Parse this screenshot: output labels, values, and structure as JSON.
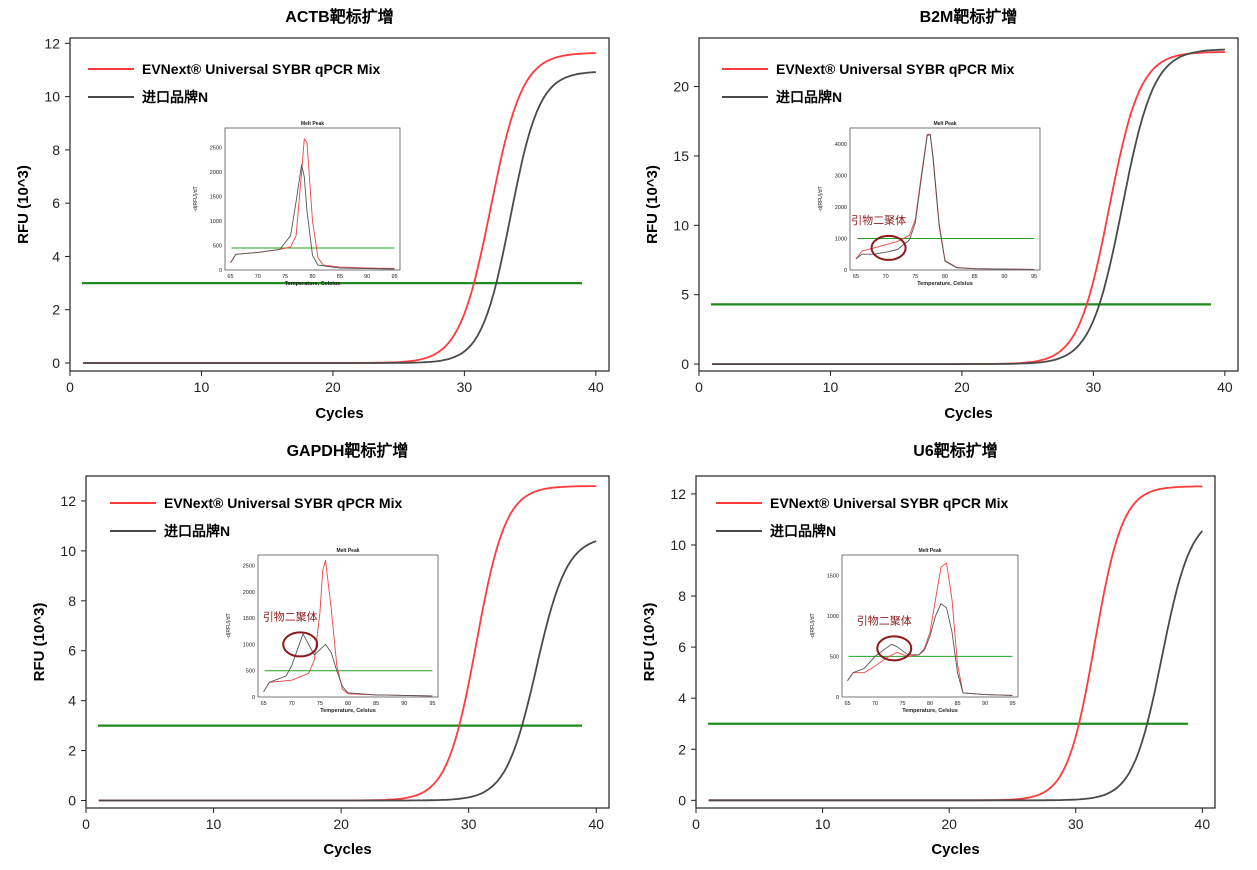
{
  "colors": {
    "evnext": "#ff3b3b",
    "import": "#4a4a4a",
    "threshold": "#1e8c1e",
    "ellipse": "#8b1a1a",
    "annot": "#8b1a1a"
  },
  "chart_data": [
    {
      "id": "actb",
      "type": "line",
      "title": "ACTB靶标扩增",
      "xlabel": "Cycles",
      "ylabel": "RFU (10^3)",
      "xlim": [
        0,
        41
      ],
      "ylim": [
        -0.3,
        12.2
      ],
      "xticks": [
        0,
        10,
        20,
        30,
        40
      ],
      "yticks": [
        0,
        2,
        4,
        6,
        8,
        10,
        12
      ],
      "threshold": 3.0,
      "legend": [
        "EVNext® Universal SYBR qPCR Mix",
        "进口品牌N"
      ],
      "series": [
        {
          "name": "EVNext® Universal SYBR qPCR Mix",
          "logistic": {
            "top": 11.65,
            "mid": 32.0,
            "slope": 1.2
          }
        },
        {
          "name": "进口品牌N",
          "logistic": {
            "top": 10.95,
            "mid": 33.5,
            "slope": 1.1
          }
        }
      ],
      "inset": {
        "title": "Melt Peak",
        "xlabel": "Temperature, Celsius",
        "ylabel": "-d(RFU)/dT",
        "xlim": [
          64,
          96
        ],
        "ylim": [
          0,
          2900
        ],
        "xticks": [
          65,
          70,
          75,
          80,
          85,
          90,
          95
        ],
        "yticks": [
          0,
          500,
          1000,
          1500,
          2000,
          2500
        ],
        "threshold": 450,
        "annotation": "",
        "series": [
          {
            "name": "EVNext",
            "x": [
              65,
              66,
              70,
              74,
              76,
              77,
              78,
              78.5,
              79,
              80,
              81,
              82,
              85,
              90,
              95
            ],
            "y": [
              150,
              320,
              360,
              420,
              470,
              700,
              2000,
              2680,
              2600,
              1000,
              250,
              100,
              60,
              40,
              30
            ]
          },
          {
            "name": "进口品牌N",
            "x": [
              65,
              66,
              70,
              74,
              76,
              77,
              78,
              78.5,
              79,
              80,
              81,
              85,
              90,
              95
            ],
            "y": [
              150,
              320,
              360,
              420,
              700,
              1400,
              2150,
              1900,
              1200,
              300,
              100,
              40,
              30,
              20
            ]
          }
        ]
      }
    },
    {
      "id": "b2m",
      "type": "line",
      "title": "B2M靶标扩增",
      "xlabel": "Cycles",
      "ylabel": "RFU (10^3)",
      "xlim": [
        0,
        41
      ],
      "ylim": [
        -0.5,
        23.5
      ],
      "xticks": [
        0,
        10,
        20,
        30,
        40
      ],
      "yticks": [
        0,
        5,
        10,
        15,
        20
      ],
      "threshold": 4.3,
      "legend": [
        "EVNext® Universal SYBR qPCR Mix",
        "进口品牌N"
      ],
      "series": [
        {
          "name": "EVNext® Universal SYBR qPCR Mix",
          "logistic": {
            "top": 22.5,
            "mid": 31.2,
            "slope": 1.18
          }
        },
        {
          "name": "进口品牌N",
          "logistic": {
            "top": 22.7,
            "mid": 32.2,
            "slope": 1.2
          }
        }
      ],
      "inset": {
        "title": "Melt Peak",
        "xlabel": "Temperature, Celsius",
        "ylabel": "-d(RFU)/dT",
        "xlim": [
          64,
          96
        ],
        "ylim": [
          0,
          4500
        ],
        "xticks": [
          65,
          70,
          75,
          80,
          85,
          90,
          95
        ],
        "yticks": [
          0,
          1000,
          2000,
          3000,
          4000
        ],
        "threshold": 1000,
        "annotation": "引物二聚体",
        "ellipse_at": [
          70.5,
          700
        ],
        "series": [
          {
            "name": "EVNext",
            "x": [
              65,
              66,
              68,
              70,
              72,
              74,
              75,
              76,
              77,
              77.5,
              78,
              79,
              80,
              82,
              85,
              90,
              95
            ],
            "y": [
              350,
              600,
              700,
              800,
              900,
              1100,
              1600,
              3000,
              4300,
              4300,
              3600,
              1500,
              300,
              80,
              40,
              30,
              20
            ]
          },
          {
            "name": "进口品牌N",
            "x": [
              65,
              66,
              68,
              70,
              72,
              74,
              75,
              76,
              77,
              77.5,
              78,
              79,
              80,
              82,
              85,
              90,
              95
            ],
            "y": [
              350,
              500,
              500,
              560,
              650,
              950,
              1500,
              2900,
              4250,
              4300,
              3500,
              1400,
              280,
              70,
              40,
              30,
              20
            ]
          }
        ]
      }
    },
    {
      "id": "gapdh",
      "type": "line",
      "title": "GAPDH靶标扩增",
      "xlabel": "Cycles",
      "ylabel": "RFU (10^3)",
      "xlim": [
        0,
        41
      ],
      "ylim": [
        -0.3,
        13.0
      ],
      "xticks": [
        0,
        10,
        20,
        30,
        40
      ],
      "yticks": [
        0,
        2,
        4,
        6,
        8,
        10,
        12
      ],
      "threshold": 3.0,
      "legend": [
        "EVNext® Universal SYBR qPCR Mix",
        "进口品牌N"
      ],
      "series": [
        {
          "name": "EVNext® Universal SYBR qPCR Mix",
          "logistic": {
            "top": 12.6,
            "mid": 30.6,
            "slope": 1.15
          }
        },
        {
          "name": "进口品牌N",
          "logistic": {
            "top": 10.6,
            "mid": 35.3,
            "slope": 1.2
          }
        }
      ],
      "inset": {
        "title": "Melt Peak",
        "xlabel": "Temperature, Celsius",
        "ylabel": "-d(RFU)/dT",
        "xlim": [
          64,
          96
        ],
        "ylim": [
          0,
          2700
        ],
        "xticks": [
          65,
          70,
          75,
          80,
          85,
          90,
          95
        ],
        "yticks": [
          0,
          500,
          1000,
          1500,
          2000,
          2500
        ],
        "threshold": 500,
        "annotation": "引物二聚体",
        "ellipse_at": [
          71.5,
          1000
        ],
        "series": [
          {
            "name": "EVNext",
            "x": [
              65,
              66,
              70,
              73,
              74,
              75,
              75.5,
              76,
              77,
              78,
              79,
              80,
              85,
              90,
              95
            ],
            "y": [
              100,
              280,
              320,
              450,
              700,
              1600,
              2400,
              2600,
              1700,
              600,
              150,
              60,
              40,
              30,
              20
            ]
          },
          {
            "name": "进口品牌N",
            "x": [
              65,
              66,
              69,
              70,
              71,
              72,
              73,
              74,
              75,
              76,
              77,
              78,
              79,
              80,
              85,
              90,
              95
            ],
            "y": [
              100,
              280,
              400,
              600,
              900,
              1200,
              1000,
              800,
              900,
              1000,
              850,
              500,
              200,
              80,
              40,
              30,
              20
            ]
          }
        ]
      }
    },
    {
      "id": "u6",
      "type": "line",
      "title": "U6靶标扩增",
      "xlabel": "Cycles",
      "ylabel": "RFU (10^3)",
      "xlim": [
        0,
        41
      ],
      "ylim": [
        -0.3,
        12.7
      ],
      "xticks": [
        0,
        10,
        20,
        30,
        40
      ],
      "yticks": [
        0,
        2,
        4,
        6,
        8,
        10,
        12
      ],
      "threshold": 3.0,
      "legend": [
        "EVNext® Universal SYBR qPCR Mix",
        "进口品牌N"
      ],
      "series": [
        {
          "name": "EVNext® Universal SYBR qPCR Mix",
          "logistic": {
            "top": 12.3,
            "mid": 31.5,
            "slope": 1.1
          }
        },
        {
          "name": "进口品牌N",
          "logistic": {
            "top": 11.2,
            "mid": 36.8,
            "slope": 1.15
          }
        }
      ],
      "inset": {
        "title": "Melt Peak",
        "xlabel": "Temperature, Celsius",
        "ylabel": "-d(RFU)/dT",
        "xlim": [
          64,
          96
        ],
        "ylim": [
          0,
          1750
        ],
        "xticks": [
          65,
          70,
          75,
          80,
          85,
          90,
          95
        ],
        "yticks": [
          0,
          500,
          1000,
          1500
        ],
        "threshold": 500,
        "annotation": "引物二聚体",
        "ellipse_at": [
          73.5,
          600
        ],
        "series": [
          {
            "name": "EVNext",
            "x": [
              65,
              66,
              68,
              70,
              72,
              74,
              76,
              78,
              79,
              80,
              81,
              82,
              83,
              84,
              85,
              86,
              90,
              95
            ],
            "y": [
              200,
              300,
              300,
              380,
              480,
              550,
              500,
              520,
              600,
              800,
              1200,
              1600,
              1650,
              1200,
              400,
              50,
              30,
              20
            ]
          },
          {
            "name": "进口品牌N",
            "x": [
              65,
              66,
              68,
              70,
              72,
              73,
              74,
              76,
              78,
              79,
              80,
              81,
              82,
              83,
              84,
              85,
              86,
              90,
              95
            ],
            "y": [
              200,
              300,
              350,
              500,
              600,
              650,
              620,
              520,
              520,
              580,
              750,
              1000,
              1150,
              1100,
              800,
              300,
              50,
              30,
              20
            ]
          }
        ]
      }
    }
  ]
}
